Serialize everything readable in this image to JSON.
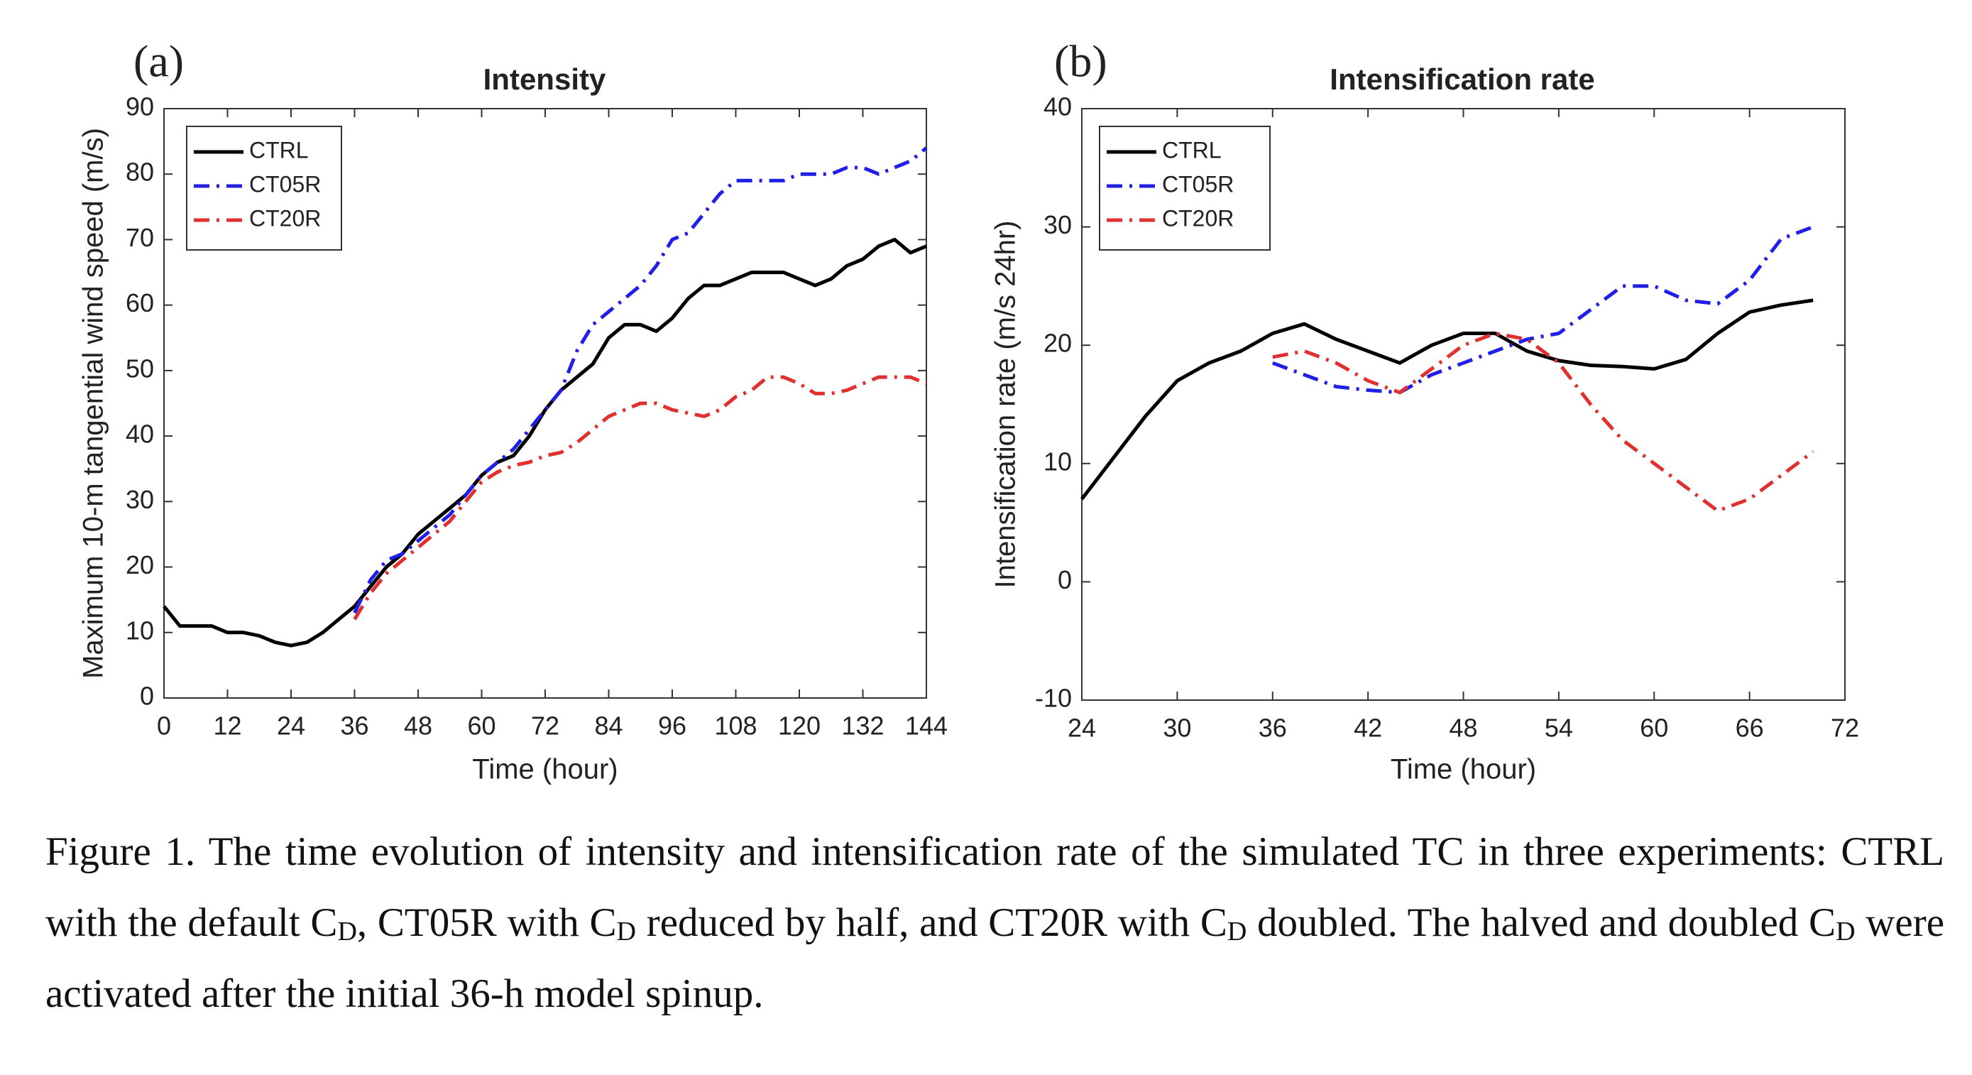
{
  "chart_data": [
    {
      "type": "line",
      "panel": "(a)",
      "title": "Intensity",
      "xlabel": "Time (hour)",
      "ylabel": "Maximum 10-m tangential wind speed (m/s)",
      "x": [
        0,
        3,
        6,
        9,
        12,
        15,
        18,
        21,
        24,
        27,
        30,
        33,
        36,
        39,
        42,
        45,
        48,
        51,
        54,
        57,
        60,
        63,
        66,
        69,
        72,
        75,
        78,
        81,
        84,
        87,
        90,
        93,
        96,
        99,
        102,
        105,
        108,
        111,
        114,
        117,
        120,
        123,
        126,
        129,
        132,
        135,
        138,
        141,
        144
      ],
      "series": [
        {
          "name": "CTRL",
          "color": "#000000",
          "dash": "solid",
          "values": [
            14,
            11,
            11,
            11,
            10,
            10,
            9.5,
            8.5,
            8,
            8.5,
            10,
            12,
            14,
            17,
            20,
            22,
            25,
            27,
            29,
            31,
            34,
            36,
            37,
            40,
            44,
            47,
            49,
            51,
            55,
            57,
            57,
            56,
            58,
            61,
            63,
            63,
            64,
            65,
            65,
            65,
            64,
            63,
            64,
            66,
            67,
            69,
            70,
            68,
            69
          ]
        },
        {
          "name": "CT05R",
          "color": "#1f1fe6",
          "dash": "dashdot",
          "values": [
            null,
            null,
            null,
            null,
            null,
            null,
            null,
            null,
            null,
            null,
            null,
            null,
            13,
            18,
            21,
            22,
            24,
            26,
            28,
            31,
            34,
            36,
            38,
            41,
            44,
            47,
            53,
            57,
            59,
            61,
            63,
            66,
            70,
            71,
            74,
            77,
            79,
            79,
            79,
            79,
            80,
            80,
            80,
            81,
            81,
            80,
            81,
            82,
            84
          ]
        },
        {
          "name": "CT20R",
          "color": "#e03030",
          "dash": "dashdot",
          "values": [
            null,
            null,
            null,
            null,
            null,
            null,
            null,
            null,
            null,
            null,
            null,
            null,
            12,
            16,
            19,
            21,
            23,
            25,
            27,
            30,
            33,
            34.5,
            35.5,
            36,
            37,
            37.5,
            39,
            41,
            43,
            44,
            45,
            45,
            44,
            43.5,
            43,
            44,
            46,
            47,
            49,
            49,
            48,
            46.5,
            46.5,
            47,
            48,
            49,
            49,
            49,
            48
          ]
        }
      ],
      "xlim": [
        0,
        144
      ],
      "xticks": [
        0,
        12,
        24,
        36,
        48,
        60,
        72,
        84,
        96,
        108,
        120,
        132,
        144
      ],
      "ylim": [
        0,
        90
      ],
      "yticks": [
        0,
        10,
        20,
        30,
        40,
        50,
        60,
        70,
        80,
        90
      ],
      "legend": "upper left"
    },
    {
      "type": "line",
      "panel": "(b)",
      "title": "Intensification rate",
      "xlabel": "Time (hour)",
      "ylabel": "Intensification rate (m/s 24hr)",
      "x": [
        24,
        26,
        28,
        30,
        32,
        34,
        36,
        38,
        40,
        42,
        44,
        46,
        48,
        50,
        52,
        54,
        56,
        58,
        60,
        62,
        64,
        66,
        68,
        70
      ],
      "series": [
        {
          "name": "CTRL",
          "color": "#000000",
          "dash": "solid",
          "values": [
            7,
            10.5,
            14,
            17,
            18.5,
            19.5,
            21,
            21.8,
            20.5,
            19.5,
            18.5,
            20,
            21,
            21,
            19.5,
            18.7,
            18.3,
            18.2,
            18,
            18.8,
            21,
            22.8,
            23.4,
            23.8
          ]
        },
        {
          "name": "CT05R",
          "color": "#1f1fe6",
          "dash": "dashdot",
          "values": [
            null,
            null,
            null,
            null,
            null,
            null,
            18.5,
            17.5,
            16.5,
            16.2,
            16,
            17.5,
            18.5,
            19.5,
            20.5,
            21,
            23,
            25,
            25,
            23.8,
            23.5,
            25.5,
            29,
            30
          ]
        },
        {
          "name": "CT20R",
          "color": "#e03030",
          "dash": "dashdot",
          "values": [
            null,
            null,
            null,
            null,
            null,
            null,
            19,
            19.5,
            18.5,
            17,
            16,
            18,
            20,
            21,
            20.5,
            18.5,
            15,
            12,
            10,
            8,
            6,
            7,
            9,
            11
          ]
        }
      ],
      "xlim": [
        24,
        72
      ],
      "xticks": [
        24,
        30,
        36,
        42,
        48,
        54,
        60,
        66,
        72
      ],
      "ylim": [
        -10,
        40
      ],
      "yticks": [
        -10,
        0,
        10,
        20,
        30,
        40
      ],
      "legend": "upper left"
    }
  ],
  "caption": [
    "Figure 1. The time evolution of intensity and intensification rate of the simulated TC in three experiments: CTRL with the default C",
    "D",
    ", CT05R with C",
    "D",
    " reduced by half, and CT20R with C",
    "D",
    " doubled. The halved and doubled C",
    "D",
    " were activated after the initial 36-h model spinup."
  ]
}
